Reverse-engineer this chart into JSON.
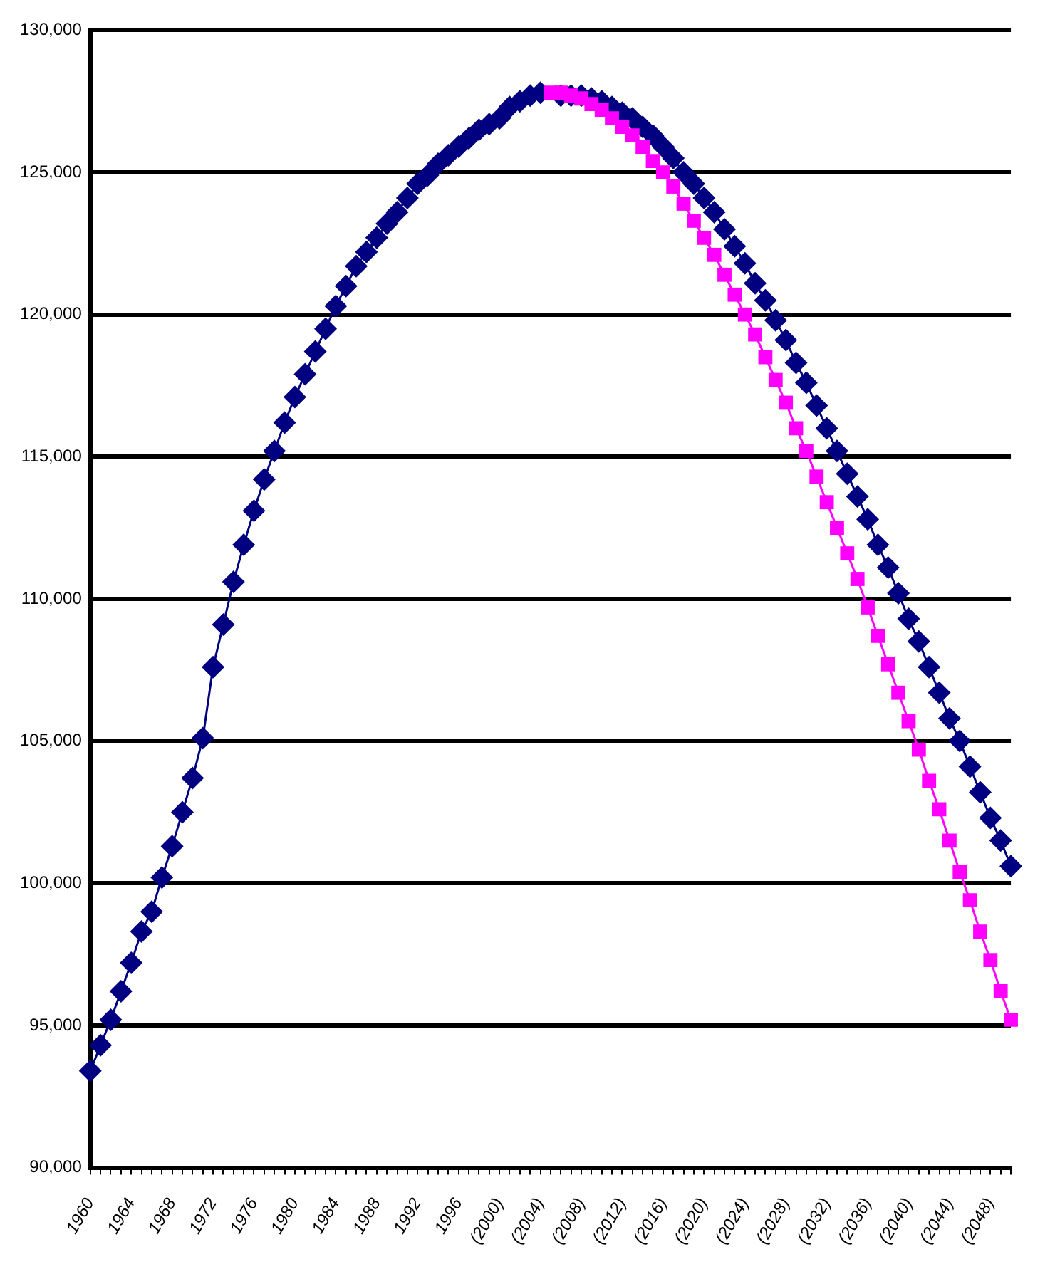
{
  "chart_data": {
    "type": "line",
    "categories": [
      "1960",
      null,
      null,
      null,
      "1964",
      null,
      null,
      null,
      "1968",
      null,
      null,
      null,
      "1972",
      null,
      null,
      null,
      "1976",
      null,
      null,
      null,
      "1980",
      null,
      null,
      null,
      "1984",
      null,
      null,
      null,
      "1988",
      null,
      null,
      null,
      "1992",
      null,
      null,
      null,
      "1996",
      null,
      null,
      null,
      "(2000)",
      null,
      null,
      null,
      "(2004)",
      null,
      null,
      null,
      "(2008)",
      null,
      null,
      null,
      "(2012)",
      null,
      null,
      null,
      "(2016)",
      null,
      null,
      null,
      "(2020)",
      null,
      null,
      null,
      "(2024)",
      null,
      null,
      null,
      "(2028)",
      null,
      null,
      null,
      "(2032)",
      null,
      null,
      null,
      "(2036)",
      null,
      null,
      null,
      "(2040)",
      null,
      null,
      null,
      "(2044)",
      null,
      null,
      null,
      "(2048)",
      null,
      null
    ],
    "series": [
      {
        "color": "#000080",
        "marker": "diamond",
        "values": [
          93400,
          94300,
          95200,
          96200,
          97200,
          98300,
          99000,
          100200,
          101300,
          102500,
          103700,
          105100,
          107600,
          109100,
          110600,
          111900,
          113100,
          114200,
          115200,
          116200,
          117100,
          117900,
          118700,
          119500,
          120300,
          121000,
          121700,
          122200,
          122700,
          123200,
          123600,
          124100,
          124600,
          124900,
          125300,
          125600,
          125900,
          126200,
          126500,
          126700,
          126900,
          127300,
          127500,
          127700,
          127800,
          null,
          127700,
          127700,
          127700,
          127600,
          127500,
          127300,
          127100,
          126900,
          126600,
          126300,
          125900,
          125500,
          125000,
          124600,
          124100,
          123600,
          123000,
          122400,
          121800,
          121100,
          120500,
          119800,
          119100,
          118300,
          117600,
          116800,
          116000,
          115200,
          114400,
          113600,
          112800,
          111900,
          111100,
          110200,
          109300,
          108500,
          107600,
          106700,
          105800,
          105000,
          104100,
          103200,
          102300,
          101500,
          100600
        ]
      },
      {
        "color": "#ff00ff",
        "marker": "square",
        "values": [
          null,
          null,
          null,
          null,
          null,
          null,
          null,
          null,
          null,
          null,
          null,
          null,
          null,
          null,
          null,
          null,
          null,
          null,
          null,
          null,
          null,
          null,
          null,
          null,
          null,
          null,
          null,
          null,
          null,
          null,
          null,
          null,
          null,
          null,
          null,
          null,
          null,
          null,
          null,
          null,
          null,
          null,
          null,
          null,
          null,
          127800,
          127800,
          127700,
          127600,
          127400,
          127200,
          126900,
          126600,
          126300,
          125900,
          125400,
          125000,
          124500,
          123900,
          123300,
          122700,
          122100,
          121400,
          120700,
          120000,
          119300,
          118500,
          117700,
          116900,
          116000,
          115200,
          114300,
          113400,
          112500,
          111600,
          110700,
          109700,
          108700,
          107700,
          106700,
          105700,
          104700,
          103600,
          102600,
          101500,
          100400,
          99400,
          98300,
          97300,
          96200,
          95200
        ]
      }
    ],
    "ylim": [
      90000,
      130000
    ],
    "yticks": [
      {
        "value": 90000,
        "label": "90,000"
      },
      {
        "value": 95000,
        "label": "95,000"
      },
      {
        "value": 100000,
        "label": "100,000"
      },
      {
        "value": 105000,
        "label": "105,000"
      },
      {
        "value": 110000,
        "label": "110,000"
      },
      {
        "value": 115000,
        "label": "115,000"
      },
      {
        "value": 120000,
        "label": "120,000"
      },
      {
        "value": 125000,
        "label": "125,000"
      },
      {
        "value": 130000,
        "label": "130,000"
      }
    ],
    "grid": "y",
    "legend": false,
    "line_style": "solid"
  }
}
